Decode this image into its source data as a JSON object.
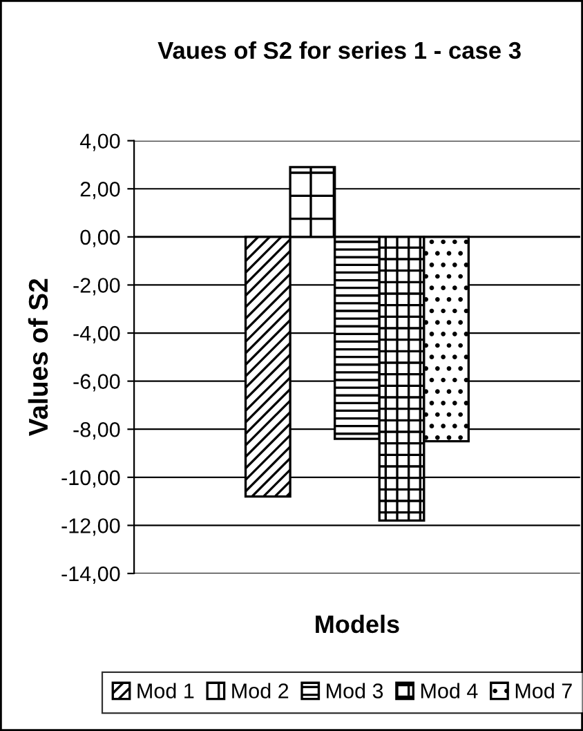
{
  "chart_data": {
    "type": "bar",
    "title": "Vaues of S2 for series 1 - case 3",
    "xlabel": "Models",
    "ylabel": "Values of S2",
    "categories": [
      null
    ],
    "series": [
      {
        "name": "Mod 1",
        "color": "#000000",
        "values": [
          -10.8
        ]
      },
      {
        "name": "Mod 2",
        "color": "#000000",
        "values": [
          2.9
        ]
      },
      {
        "name": "Mod 3",
        "color": "#000000",
        "values": [
          -8.4
        ]
      },
      {
        "name": "Mod 4",
        "color": "#000000",
        "values": [
          -11.8
        ]
      },
      {
        "name": "Mod 7",
        "color": "#000000",
        "values": [
          -8.5
        ]
      }
    ],
    "ylim": [
      -14,
      4
    ],
    "yticks": [
      {
        "value": 4,
        "label": "4,00"
      },
      {
        "value": 2,
        "label": "2,00"
      },
      {
        "value": 0,
        "label": "0,00"
      },
      {
        "value": -2,
        "label": "-2,00"
      },
      {
        "value": -4,
        "label": "-4,00"
      },
      {
        "value": -6,
        "label": "-6,00"
      },
      {
        "value": -8,
        "label": "-8,00"
      },
      {
        "value": -10,
        "label": "-10,00"
      },
      {
        "value": -12,
        "label": "-12,00"
      },
      {
        "value": -14,
        "label": "-14,00"
      }
    ],
    "grid": "y",
    "legend": "bottom"
  }
}
